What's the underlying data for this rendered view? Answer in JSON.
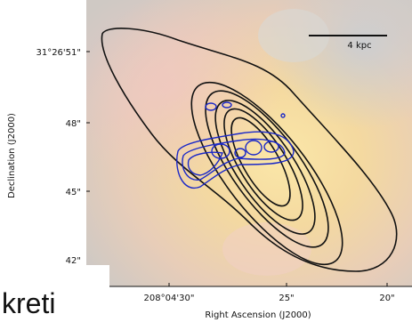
{
  "figure": {
    "x_axis_label": "Right Ascension (J2000)",
    "y_axis_label": "Declination (J2000)",
    "x_ticks": [
      "208°04'30\"",
      "25\"",
      "20\""
    ],
    "y_ticks": [
      "31°26'51\"",
      "48\"",
      "45\"",
      "42\""
    ],
    "scale_bar": "4 kpc"
  },
  "overlay_text": "kreti"
}
